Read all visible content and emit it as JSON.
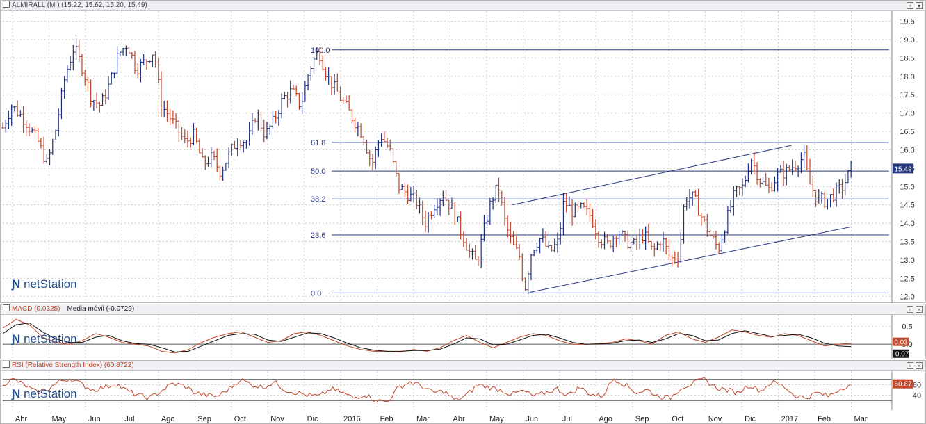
{
  "main_panel": {
    "title": "ALMIRALL (M ) (15.22, 15.62, 15.20, 15.49)",
    "last_price_label": "15.49",
    "logo_text": "netStation"
  },
  "macd_panel": {
    "title": "MACD (0.0325)",
    "signal_title": "Media móvil (-0.0729)",
    "value_label_1": "0.03",
    "value_label_2": "-0.07",
    "logo_text": "netStation"
  },
  "rsi_panel": {
    "title": "RSI (Relative Strength Index) (60.8722)",
    "value_label": "60.87",
    "logo_text": "netStation"
  },
  "colors": {
    "up_bar": "#1f2f7a",
    "down_bar": "#c0452a",
    "macd_line": "#c0452a",
    "signal_line": "#111111",
    "rsi_line": "#c0452a",
    "grid": "#c8c8c8",
    "fib_line": "#2a3a80"
  },
  "chart_data": [
    {
      "type": "bar",
      "subtype": "ohlc",
      "ylim": [
        11.9,
        19.7
      ],
      "y_ticks": [
        "19.5",
        "19.0",
        "18.5",
        "18.0",
        "17.5",
        "17.0",
        "16.5",
        "16.0",
        "15.5",
        "15.0",
        "14.5",
        "14.0",
        "13.5",
        "13.0",
        "12.5",
        "12.0"
      ],
      "y_tick_values": [
        19.5,
        19.0,
        18.5,
        18.0,
        17.5,
        17.0,
        16.5,
        16.0,
        15.5,
        15.0,
        14.5,
        14.0,
        13.5,
        13.0,
        12.5,
        12.0
      ],
      "x_labels": [
        "Abr",
        "May",
        "Jun",
        "Jul",
        "Ago",
        "Sep",
        "Oct",
        "Nov",
        "Dic",
        "2016",
        "Feb",
        "Mar",
        "Abr",
        "May",
        "Jun",
        "Jul",
        "Ago",
        "Sep",
        "Oct",
        "Nov",
        "Dic",
        "2017",
        "Feb",
        "Mar"
      ],
      "grid": true,
      "fibonacci": {
        "levels": [
          {
            "label": "100.0",
            "value": 18.72
          },
          {
            "label": "61.8",
            "value": 16.2
          },
          {
            "label": "50.0",
            "value": 15.42
          },
          {
            "label": "38.2",
            "value": 14.66
          },
          {
            "label": "23.6",
            "value": 13.68
          },
          {
            "label": "0.0",
            "value": 12.1
          }
        ]
      },
      "channel": {
        "upper": [
          [
            0.573,
            14.5
          ],
          [
            0.887,
            16.12
          ]
        ],
        "lower": [
          [
            0.593,
            12.12
          ],
          [
            0.954,
            13.9
          ]
        ]
      },
      "price_path": [
        [
          0.0,
          16.6
        ],
        [
          0.01,
          17.2
        ],
        [
          0.025,
          16.8
        ],
        [
          0.04,
          16.2
        ],
        [
          0.05,
          15.6
        ],
        [
          0.06,
          16.6
        ],
        [
          0.07,
          18.0
        ],
        [
          0.08,
          18.8
        ],
        [
          0.09,
          18.2
        ],
        [
          0.1,
          17.4
        ],
        [
          0.11,
          17.2
        ],
        [
          0.12,
          17.8
        ],
        [
          0.13,
          18.6
        ],
        [
          0.14,
          18.9
        ],
        [
          0.15,
          18.2
        ],
        [
          0.16,
          18.4
        ],
        [
          0.17,
          18.7
        ],
        [
          0.178,
          17.2
        ],
        [
          0.185,
          17.0
        ],
        [
          0.195,
          16.6
        ],
        [
          0.205,
          16.2
        ],
        [
          0.215,
          16.4
        ],
        [
          0.225,
          15.6
        ],
        [
          0.235,
          15.8
        ],
        [
          0.245,
          15.4
        ],
        [
          0.255,
          15.9
        ],
        [
          0.265,
          16.3
        ],
        [
          0.275,
          16.2
        ],
        [
          0.285,
          17.0
        ],
        [
          0.295,
          16.4
        ],
        [
          0.305,
          16.8
        ],
        [
          0.315,
          17.4
        ],
        [
          0.325,
          17.6
        ],
        [
          0.335,
          17.2
        ],
        [
          0.345,
          18.2
        ],
        [
          0.355,
          18.7
        ],
        [
          0.365,
          18.0
        ],
        [
          0.375,
          17.6
        ],
        [
          0.385,
          17.2
        ],
        [
          0.395,
          16.8
        ],
        [
          0.405,
          16.4
        ],
        [
          0.415,
          15.6
        ],
        [
          0.425,
          16.4
        ],
        [
          0.435,
          16.0
        ],
        [
          0.445,
          15.0
        ],
        [
          0.455,
          14.8
        ],
        [
          0.465,
          14.6
        ],
        [
          0.475,
          14.0
        ],
        [
          0.485,
          14.5
        ],
        [
          0.495,
          14.8
        ],
        [
          0.505,
          14.4
        ],
        [
          0.515,
          13.8
        ],
        [
          0.525,
          13.2
        ],
        [
          0.533,
          12.9
        ],
        [
          0.541,
          13.8
        ],
        [
          0.549,
          14.6
        ],
        [
          0.557,
          15.0
        ],
        [
          0.565,
          14.0
        ],
        [
          0.573,
          13.4
        ],
        [
          0.581,
          13.1
        ],
        [
          0.587,
          12.2
        ],
        [
          0.595,
          13.3
        ],
        [
          0.605,
          13.6
        ],
        [
          0.615,
          13.2
        ],
        [
          0.625,
          13.5
        ],
        [
          0.631,
          14.6
        ],
        [
          0.641,
          14.3
        ],
        [
          0.651,
          14.4
        ],
        [
          0.661,
          14.2
        ],
        [
          0.671,
          13.6
        ],
        [
          0.681,
          13.4
        ],
        [
          0.691,
          13.8
        ],
        [
          0.701,
          13.5
        ],
        [
          0.711,
          13.4
        ],
        [
          0.721,
          13.7
        ],
        [
          0.731,
          13.2
        ],
        [
          0.741,
          13.6
        ],
        [
          0.751,
          13.0
        ],
        [
          0.761,
          13.2
        ],
        [
          0.767,
          14.7
        ],
        [
          0.777,
          14.7
        ],
        [
          0.787,
          14.1
        ],
        [
          0.797,
          13.6
        ],
        [
          0.805,
          13.3
        ],
        [
          0.813,
          14.0
        ],
        [
          0.823,
          14.8
        ],
        [
          0.833,
          15.0
        ],
        [
          0.841,
          15.8
        ],
        [
          0.851,
          15.2
        ],
        [
          0.861,
          14.9
        ],
        [
          0.871,
          15.3
        ],
        [
          0.881,
          15.4
        ],
        [
          0.891,
          15.6
        ],
        [
          0.901,
          15.8
        ],
        [
          0.907,
          15.1
        ],
        [
          0.915,
          14.7
        ],
        [
          0.925,
          14.6
        ],
        [
          0.935,
          14.8
        ],
        [
          0.945,
          15.0
        ],
        [
          0.954,
          15.49
        ]
      ]
    },
    {
      "type": "line",
      "title": "MACD (0.0325)",
      "ylim": [
        -0.35,
        0.75
      ],
      "y_ticks": [
        "0.5",
        "0.0"
      ],
      "y_tick_values": [
        0.5,
        0.0
      ],
      "series": [
        {
          "name": "MACD (0.0325)",
          "values": [
            0.45,
            0.7,
            0.55,
            0.2,
            0.05,
            0.0,
            0.1,
            0.3,
            0.2,
            0.05,
            0.0,
            -0.05,
            -0.2,
            -0.25,
            -0.15,
            0.05,
            0.2,
            0.3,
            0.35,
            0.2,
            0.05,
            0.1,
            0.3,
            0.35,
            0.25,
            0.1,
            -0.05,
            -0.15,
            -0.2,
            -0.2,
            -0.22,
            -0.15,
            -0.2,
            -0.1,
            0.1,
            0.25,
            0.05,
            -0.1,
            0.05,
            0.2,
            0.3,
            0.25,
            0.1,
            0.0,
            0.0,
            0.02,
            0.05,
            0.15,
            0.1,
            0.0,
            0.25,
            0.35,
            0.15,
            0.05,
            0.2,
            0.4,
            0.35,
            0.25,
            0.2,
            0.3,
            0.25,
            0.1,
            -0.05,
            0.0,
            0.03
          ]
        },
        {
          "name": "Media móvil (-0.0729)",
          "values": [
            0.3,
            0.55,
            0.6,
            0.35,
            0.15,
            0.05,
            0.05,
            0.2,
            0.25,
            0.1,
            0.02,
            0.0,
            -0.1,
            -0.22,
            -0.2,
            -0.05,
            0.1,
            0.25,
            0.3,
            0.28,
            0.12,
            0.08,
            0.2,
            0.32,
            0.3,
            0.18,
            0.03,
            -0.1,
            -0.17,
            -0.2,
            -0.2,
            -0.18,
            -0.18,
            -0.14,
            0.0,
            0.18,
            0.15,
            -0.02,
            0.0,
            0.12,
            0.25,
            0.28,
            0.18,
            0.05,
            0.0,
            0.01,
            0.03,
            0.1,
            0.12,
            0.05,
            0.15,
            0.3,
            0.25,
            0.1,
            0.12,
            0.3,
            0.38,
            0.3,
            0.22,
            0.25,
            0.28,
            0.18,
            0.03,
            -0.05,
            -0.07
          ]
        }
      ]
    },
    {
      "type": "line",
      "title": "RSI (Relative Strength Index) (60.8722)",
      "ylim": [
        20,
        80
      ],
      "y_ticks": [
        "60",
        "40"
      ],
      "y_tick_values": [
        60,
        40
      ],
      "series": [
        {
          "name": "RSI (Relative Strength Index) (60.8722)",
          "values": [
            62,
            70,
            58,
            45,
            52,
            66,
            72,
            60,
            50,
            55,
            62,
            48,
            40,
            35,
            48,
            62,
            58,
            45,
            40,
            38,
            52,
            70,
            60,
            55,
            65,
            50,
            45,
            40,
            38,
            52,
            45,
            35,
            42,
            30,
            28,
            55,
            65,
            58,
            45,
            48,
            30,
            40,
            60,
            55,
            50,
            42,
            48,
            38,
            45,
            52,
            40,
            55,
            42,
            38,
            72,
            60,
            45,
            50,
            38,
            35,
            55,
            62,
            70,
            55,
            50,
            45,
            60,
            48,
            65,
            58,
            40,
            35,
            45,
            38,
            52,
            60.87
          ]
        }
      ]
    }
  ]
}
